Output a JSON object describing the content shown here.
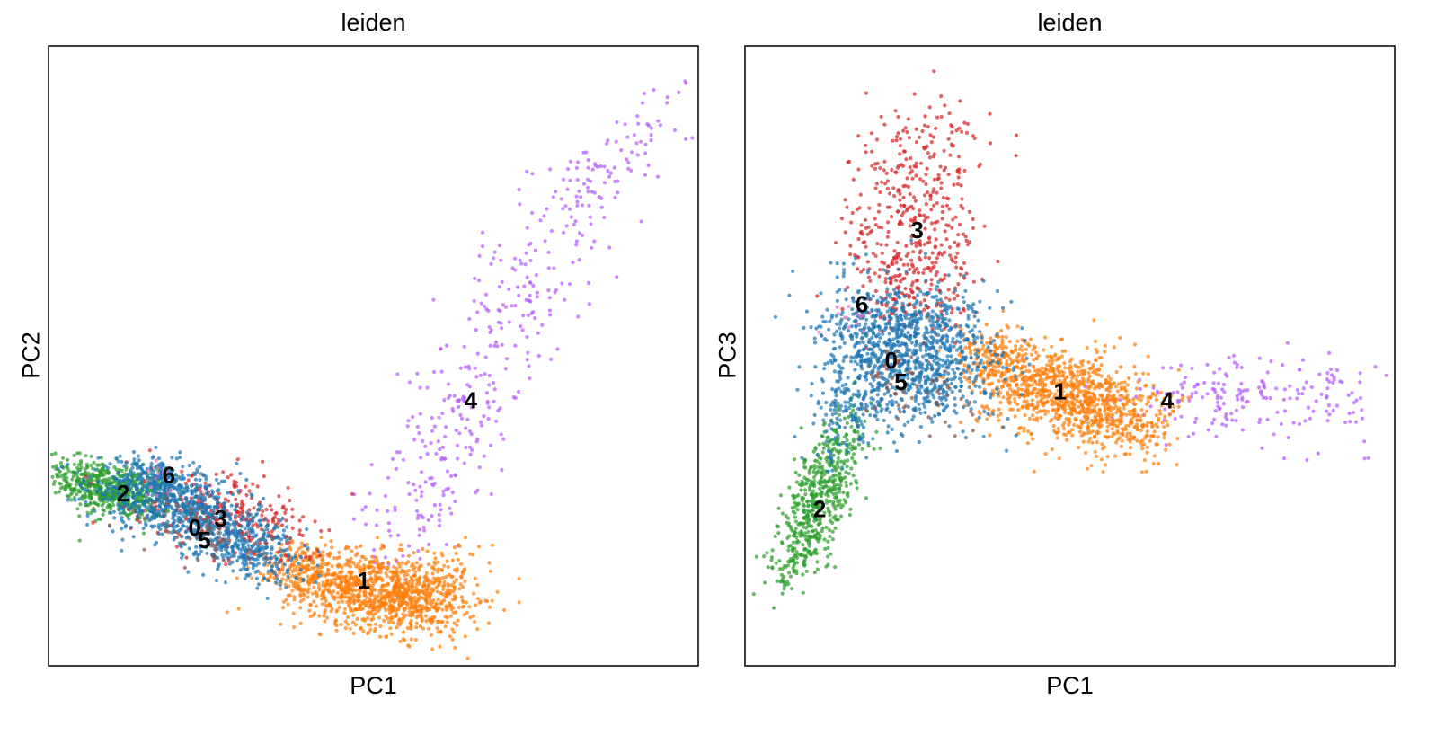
{
  "chart_data": [
    {
      "type": "scatter",
      "title": "leiden",
      "xlabel": "PC1",
      "ylabel": "PC2",
      "xlim": [
        0,
        100
      ],
      "ylim": [
        0,
        100
      ],
      "ticks": "none",
      "legend": "on data",
      "clusters": [
        {
          "name": "0",
          "color": "#1f77b4",
          "label_at": [
            22.5,
            22.0
          ],
          "shape": [
            [
              18,
              27,
              6,
              2.8,
              -0.35,
              500
            ],
            [
              26,
              22,
              6,
              2.6,
              -0.35,
              300
            ],
            [
              31,
              18,
              4,
              2.2,
              -0.4,
              180
            ],
            [
              17,
              30,
              3,
              2,
              -0.3,
              100
            ]
          ]
        },
        {
          "name": "1",
          "color": "#ff7f0e",
          "label_at": [
            48.5,
            13.5
          ],
          "shape": [
            [
              50,
              12,
              7,
              3.2,
              -0.3,
              900
            ],
            [
              40,
              16,
              4,
              2.2,
              -0.3,
              150
            ],
            [
              58,
              11,
              4,
              3,
              -0.1,
              150
            ],
            [
              62,
              15,
              4,
              3,
              0.2,
              60
            ]
          ]
        },
        {
          "name": "2",
          "color": "#2ca02c",
          "label_at": [
            11.5,
            27.5
          ],
          "shape": [
            [
              11,
              28,
              4,
              2.2,
              -0.3,
              450
            ],
            [
              6,
              30,
              3,
              2,
              -0.25,
              150
            ]
          ]
        },
        {
          "name": "3",
          "color": "#d62728",
          "label_at": [
            26.5,
            23.5
          ],
          "shape": [
            [
              25,
              25,
              6,
              3.5,
              -0.35,
              230
            ],
            [
              33,
              22,
              4,
              3,
              -0.35,
              80
            ]
          ]
        },
        {
          "name": "4",
          "color": "#b55cff",
          "label_at": [
            65.0,
            42.5
          ],
          "shape": [
            [
              93,
              87,
              3.5,
              4,
              0.3,
              40
            ],
            [
              82,
              75,
              4,
              5,
              0.3,
              80
            ],
            [
              72,
              58,
              5,
              6,
              0.3,
              110
            ],
            [
              64,
              42,
              4.5,
              6,
              0.2,
              100
            ],
            [
              58,
              28,
              3.5,
              5,
              0.1,
              70
            ],
            [
              53,
              20,
              3,
              4,
              0.1,
              25
            ]
          ]
        },
        {
          "name": "5",
          "color": "#8c564b",
          "label_at": [
            24.0,
            20.0
          ],
          "shape": [
            [
              22,
              22,
              5,
              2.5,
              -0.3,
              40
            ],
            [
              28,
              19,
              3,
              2,
              -0.3,
              15
            ]
          ]
        },
        {
          "name": "6",
          "color": "#e377c2",
          "label_at": [
            18.5,
            30.5
          ],
          "shape": [
            [
              17,
              30,
              1.5,
              1.5,
              0,
              12
            ]
          ]
        }
      ]
    },
    {
      "type": "scatter",
      "title": "leiden",
      "xlabel": "PC1",
      "ylabel": "PC3",
      "xlim": [
        0,
        100
      ],
      "ylim": [
        0,
        100
      ],
      "ticks": "none",
      "legend": "on data",
      "clusters": [
        {
          "name": "0",
          "color": "#1f77b4",
          "label_at": [
            22.5,
            49.0
          ],
          "shape": [
            [
              24,
              49,
              6,
              5,
              0,
              700
            ],
            [
              21,
              56,
              5,
              4,
              0,
              200
            ],
            [
              31,
              54,
              5,
              4,
              -0.3,
              150
            ],
            [
              17,
              41,
              3.5,
              4,
              0.5,
              120
            ],
            [
              32,
              46,
              4,
              3,
              -0.2,
              80
            ]
          ]
        },
        {
          "name": "1",
          "color": "#ff7f0e",
          "label_at": [
            48.5,
            44.0
          ],
          "shape": [
            [
              49,
              44,
              6.5,
              4,
              -0.3,
              800
            ],
            [
              39,
              49,
              4,
              3,
              -0.3,
              200
            ],
            [
              57,
              40,
              4,
              3.5,
              -0.3,
              150
            ],
            [
              63,
              38,
              3,
              3,
              0,
              40
            ]
          ]
        },
        {
          "name": "2",
          "color": "#2ca02c",
          "label_at": [
            11.5,
            25.0
          ],
          "shape": [
            [
              11,
              25,
              3,
              4.5,
              0.6,
              300
            ],
            [
              13,
              32,
              3,
              3.5,
              0.5,
              120
            ],
            [
              8,
              18,
              2.5,
              3.5,
              0.6,
              100
            ],
            [
              15,
              38,
              2.5,
              3,
              0.5,
              60
            ]
          ]
        },
        {
          "name": "3",
          "color": "#d62728",
          "label_at": [
            26.5,
            70.0
          ],
          "shape": [
            [
              26,
              72,
              5,
              8,
              0,
              300
            ],
            [
              26,
              61,
              5,
              4,
              0,
              150
            ],
            [
              29,
              83,
              4,
              5,
              0,
              60
            ]
          ]
        },
        {
          "name": "4",
          "color": "#b55cff",
          "label_at": [
            65.0,
            42.5
          ],
          "shape": [
            [
              70,
              44,
              6,
              3,
              0,
              80
            ],
            [
              82,
              43,
              7,
              3.5,
              0,
              90
            ],
            [
              91,
              44,
              3.5,
              2.5,
              0,
              30
            ]
          ]
        },
        {
          "name": "5",
          "color": "#8c564b",
          "label_at": [
            24.0,
            45.5
          ],
          "shape": [
            [
              24,
              45,
              4,
              3,
              0,
              40
            ],
            [
              32,
              42,
              3,
              2.5,
              0,
              15
            ]
          ]
        },
        {
          "name": "6",
          "color": "#e377c2",
          "label_at": [
            18.0,
            58.0
          ],
          "shape": [
            [
              16,
              57,
              1.5,
              2,
              0,
              12
            ]
          ]
        }
      ]
    }
  ]
}
